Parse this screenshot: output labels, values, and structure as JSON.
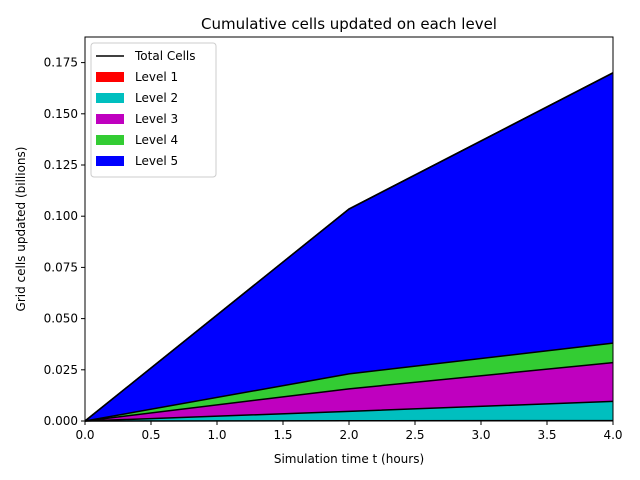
{
  "chart_data": {
    "type": "area",
    "title": "Cumulative cells updated on each level",
    "xlabel": "Simulation time t (hours)",
    "ylabel": "Grid cells updated (billions)",
    "xlim": [
      0,
      4
    ],
    "ylim": [
      0,
      0.1875
    ],
    "x": [
      0,
      2,
      4
    ],
    "xticks": [
      "0.0",
      "0.5",
      "1.0",
      "1.5",
      "2.0",
      "2.5",
      "3.0",
      "3.5",
      "4.0"
    ],
    "yticks": [
      "0.000",
      "0.025",
      "0.050",
      "0.075",
      "0.100",
      "0.125",
      "0.150",
      "0.175"
    ],
    "stacked": true,
    "grid": false,
    "legend_position": "upper-left",
    "total": {
      "name": "Total Cells",
      "values": [
        0,
        0.1035,
        0.17
      ],
      "color": "#000000"
    },
    "series": [
      {
        "name": "Level 1",
        "values": [
          0,
          0.0001,
          0.0002
        ],
        "color": "#ff0000"
      },
      {
        "name": "Level 2",
        "values": [
          0,
          0.0046,
          0.0094
        ],
        "color": "#00bfbf"
      },
      {
        "name": "Level 3",
        "values": [
          0,
          0.011,
          0.0189
        ],
        "color": "#bf00bf"
      },
      {
        "name": "Level 4",
        "values": [
          0,
          0.0073,
          0.0095
        ],
        "color": "#33cc33"
      },
      {
        "name": "Level 5",
        "values": [
          0,
          0.0805,
          0.132
        ],
        "color": "#0000ff"
      }
    ]
  }
}
